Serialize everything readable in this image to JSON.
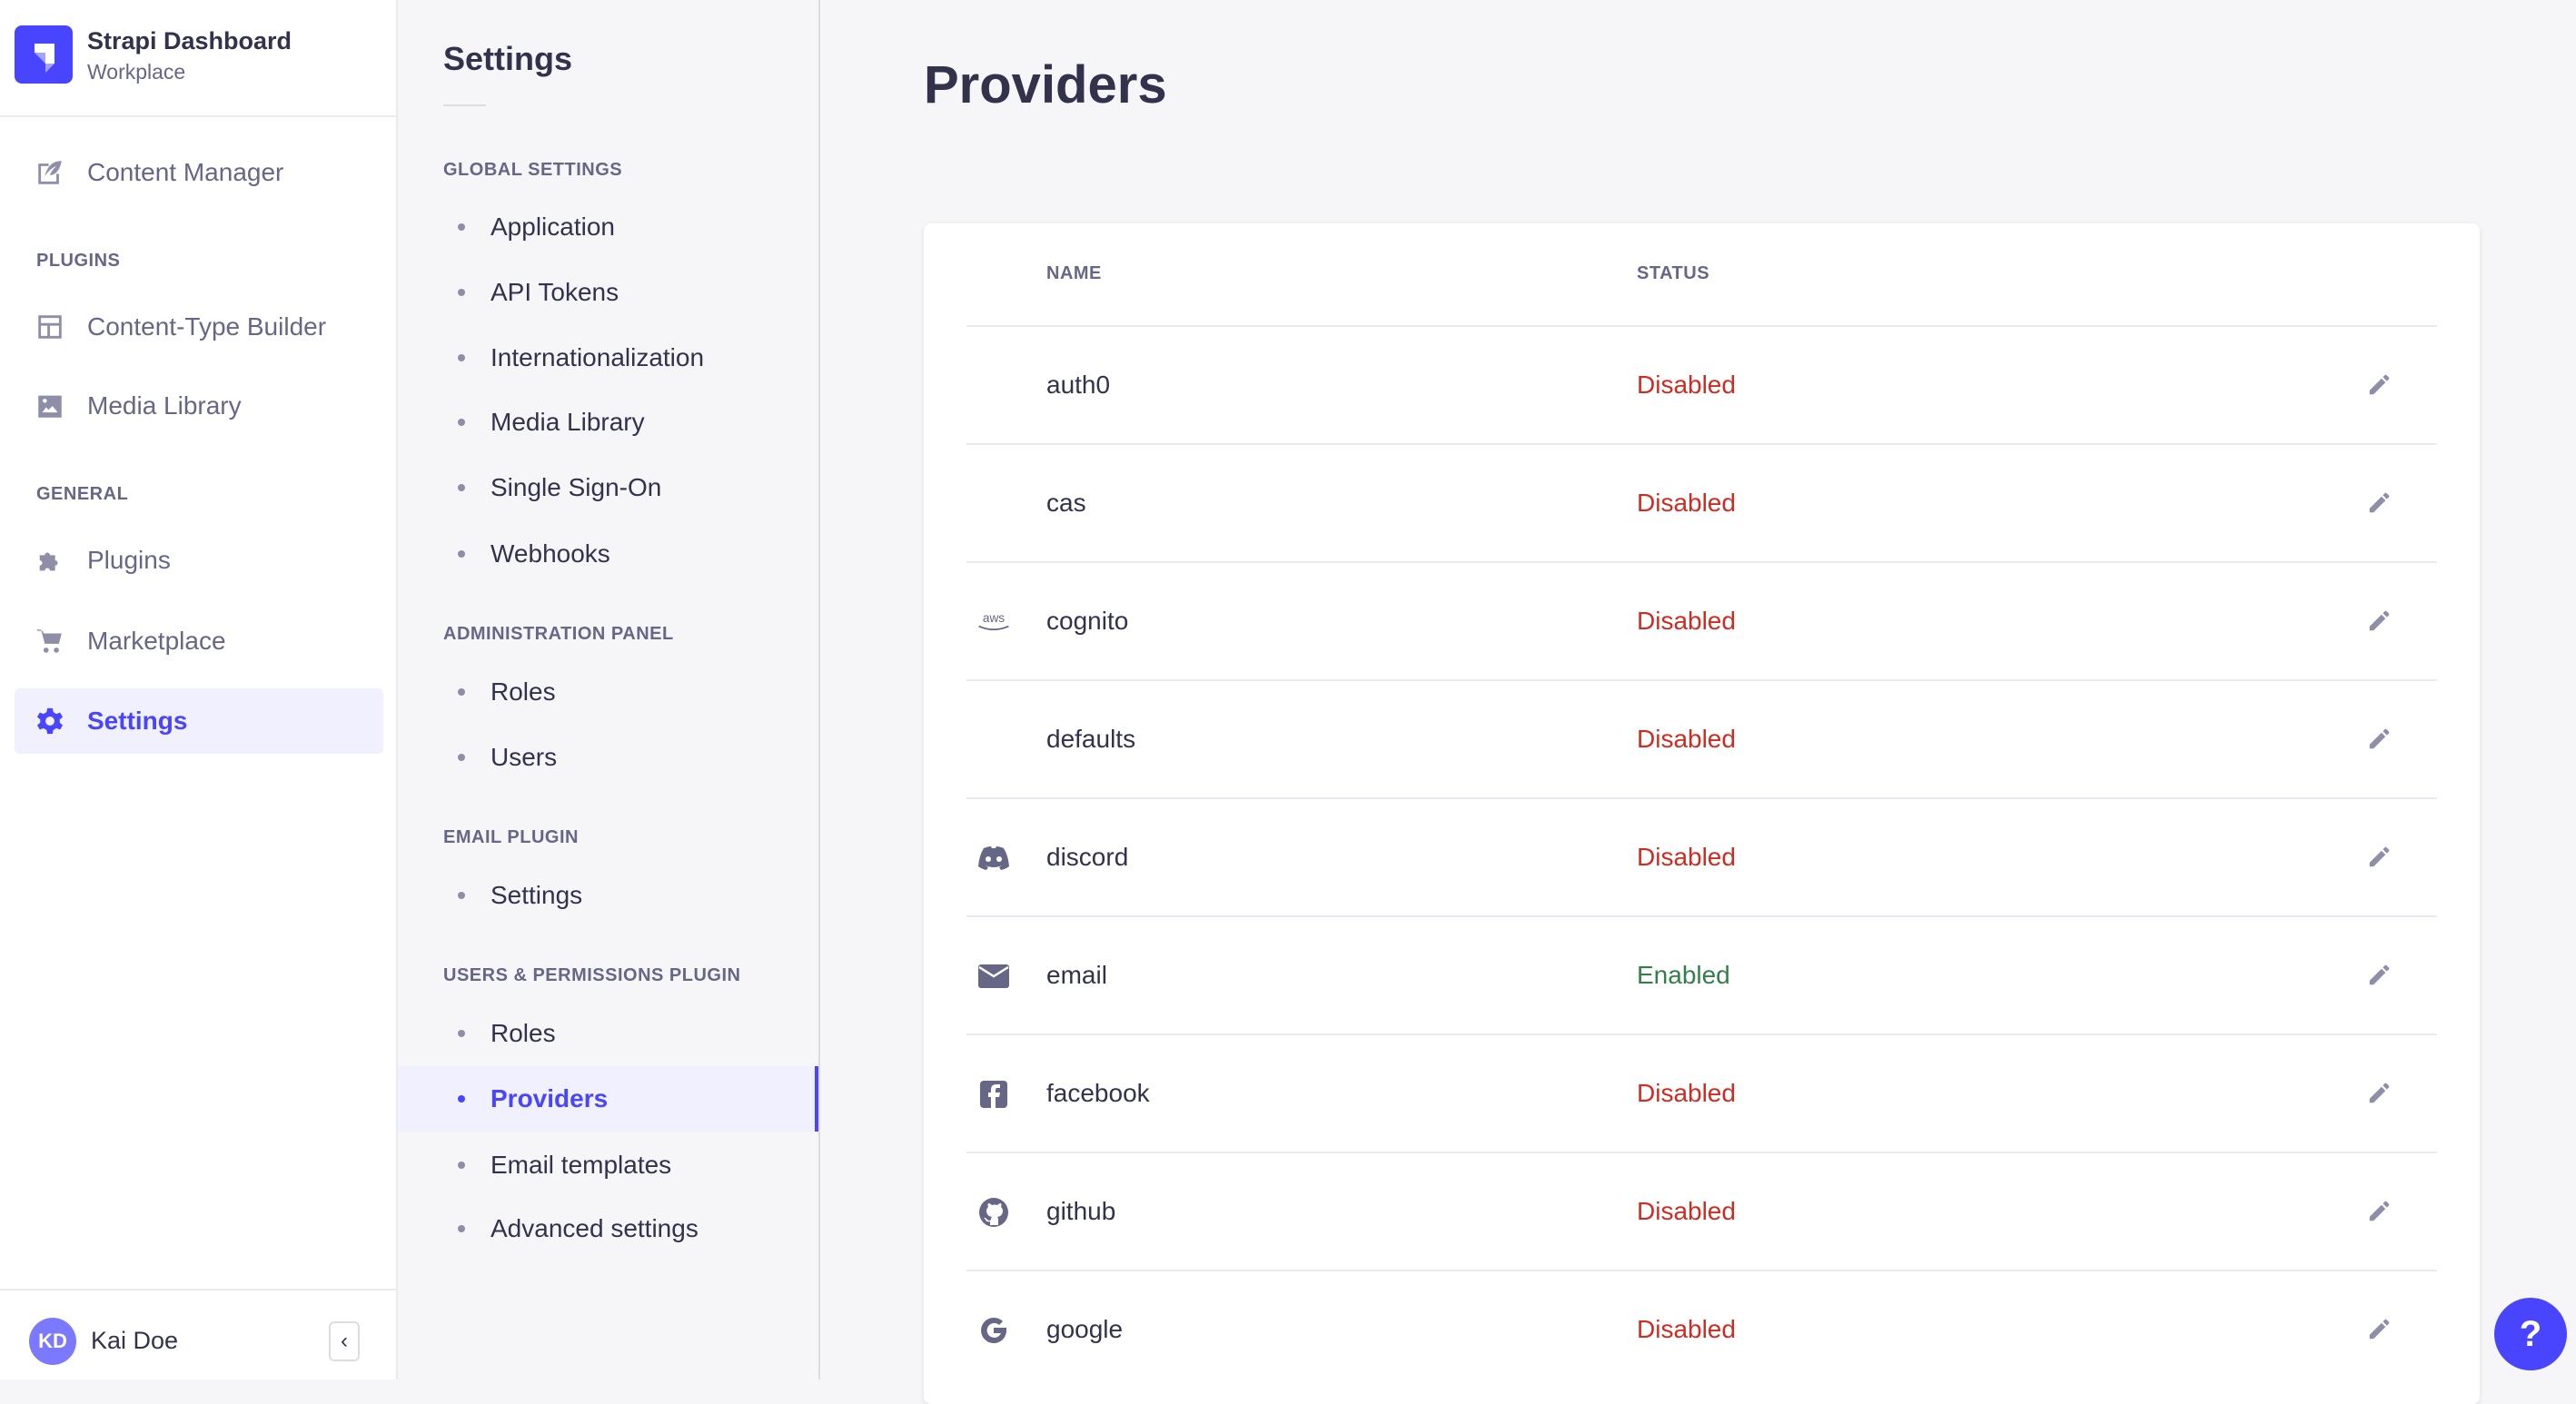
{
  "brand": {
    "title": "Strapi Dashboard",
    "subtitle": "Workplace"
  },
  "nav": {
    "content_manager": "Content Manager",
    "plugins_section": "PLUGINS",
    "content_type_builder": "Content-Type Builder",
    "media_library": "Media Library",
    "general_section": "GENERAL",
    "plugins": "Plugins",
    "marketplace": "Marketplace",
    "settings": "Settings"
  },
  "user": {
    "initials": "KD",
    "name": "Kai Doe"
  },
  "settings_panel": {
    "title": "Settings",
    "sections": [
      {
        "label": "GLOBAL SETTINGS",
        "items": [
          "Application",
          "API Tokens",
          "Internationalization",
          "Media Library",
          "Single Sign-On",
          "Webhooks"
        ]
      },
      {
        "label": "ADMINISTRATION PANEL",
        "items": [
          "Roles",
          "Users"
        ]
      },
      {
        "label": "EMAIL PLUGIN",
        "items": [
          "Settings"
        ]
      },
      {
        "label": "USERS & PERMISSIONS PLUGIN",
        "items": [
          "Roles",
          "Providers",
          "Email templates",
          "Advanced settings"
        ]
      }
    ],
    "active": "Providers"
  },
  "main": {
    "title": "Providers",
    "columns": {
      "name": "NAME",
      "status": "STATUS"
    },
    "rows": [
      {
        "name": "auth0",
        "status": "Disabled",
        "icon": ""
      },
      {
        "name": "cas",
        "status": "Disabled",
        "icon": ""
      },
      {
        "name": "cognito",
        "status": "Disabled",
        "icon": "aws-icon"
      },
      {
        "name": "defaults",
        "status": "Disabled",
        "icon": ""
      },
      {
        "name": "discord",
        "status": "Disabled",
        "icon": "discord-icon"
      },
      {
        "name": "email",
        "status": "Enabled",
        "icon": "envelope-icon"
      },
      {
        "name": "facebook",
        "status": "Disabled",
        "icon": "facebook-icon"
      },
      {
        "name": "github",
        "status": "Disabled",
        "icon": "github-icon"
      },
      {
        "name": "google",
        "status": "Disabled",
        "icon": "google-icon"
      }
    ]
  },
  "help": "?",
  "colors": {
    "primary": "#4945ff",
    "enabled": "#328048",
    "disabled": "#d02b20"
  }
}
